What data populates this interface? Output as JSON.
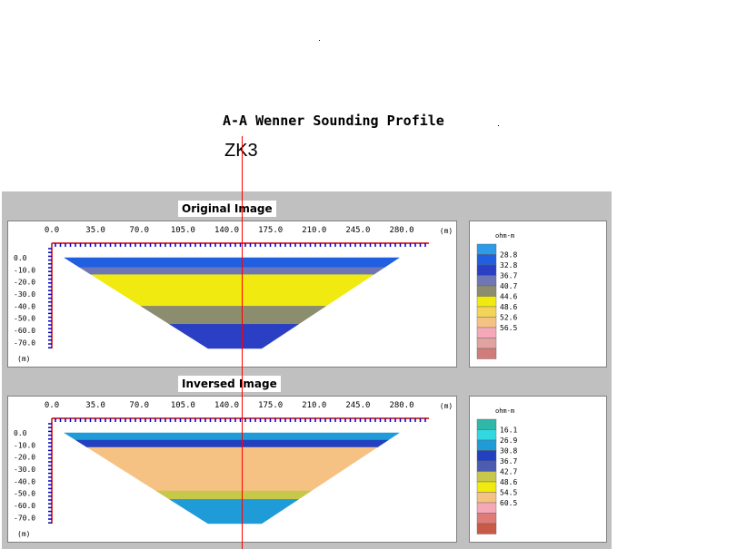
{
  "figure": {
    "title": "A-A Wenner Sounding Profile",
    "borehole": "ZK3"
  },
  "chart_data": [
    {
      "type": "heatmap",
      "title": "Original Image",
      "x_unit": "(m)",
      "y_unit": "(m)",
      "x_ticks": [
        "0.0",
        "35.0",
        "70.0",
        "105.0",
        "140.0",
        "175.0",
        "210.0",
        "245.0",
        "280.0"
      ],
      "y_ticks": [
        "0.0",
        "-10.0",
        "-20.0",
        "-30.0",
        "-40.0",
        "-50.0",
        "-60.0",
        "-70.0"
      ],
      "xlim": [
        0,
        280
      ],
      "ylim": [
        -75,
        0
      ],
      "colorbar_unit": "ohm-m",
      "colorbar_ticks": [
        "28.8",
        "32.8",
        "36.7",
        "40.7",
        "44.6",
        "48.6",
        "52.6",
        "56.5"
      ],
      "colorbar_colors": [
        "#2f9ae8",
        "#1f5fe0",
        "#2a3fc4",
        "#6e76b4",
        "#8c8c6e",
        "#f0ea10",
        "#f3d35a",
        "#f6c283",
        "#f5a9b8",
        "#e0a3a0",
        "#d27b7b"
      ],
      "layers": [
        {
          "depth_top": 0,
          "depth_bottom": -8,
          "value": 30.0
        },
        {
          "depth_top": -8,
          "depth_bottom": -14,
          "value": 36.7
        },
        {
          "depth_top": -14,
          "depth_bottom": -40,
          "value": 46.0
        },
        {
          "depth_top": -40,
          "depth_bottom": -55,
          "value": 42.0
        },
        {
          "depth_top": -55,
          "depth_bottom": -75,
          "value": 32.8
        }
      ],
      "borehole_x": 140
    },
    {
      "type": "heatmap",
      "title": "Inversed Image",
      "x_unit": "(m)",
      "y_unit": "(m)",
      "x_ticks": [
        "0.0",
        "35.0",
        "70.0",
        "105.0",
        "140.0",
        "175.0",
        "210.0",
        "245.0",
        "280.0"
      ],
      "y_ticks": [
        "0.0",
        "-10.0",
        "-20.0",
        "-30.0",
        "-40.0",
        "-50.0",
        "-60.0",
        "-70.0"
      ],
      "xlim": [
        0,
        280
      ],
      "ylim": [
        -75,
        0
      ],
      "colorbar_unit": "ohm-m",
      "colorbar_ticks": [
        "16.1",
        "26.9",
        "30.8",
        "36.7",
        "42.7",
        "48.6",
        "54.5",
        "60.5"
      ],
      "colorbar_colors": [
        "#2fb8a8",
        "#30d8e0",
        "#1f9cd8",
        "#2240c0",
        "#4c5cb0",
        "#c7c84a",
        "#f0ea10",
        "#f6c283",
        "#f5a9b8",
        "#e07a78",
        "#c95a48"
      ],
      "layers": [
        {
          "depth_top": 0,
          "depth_bottom": -6,
          "value": 26.9
        },
        {
          "depth_top": -6,
          "depth_bottom": -12,
          "value": 30.8
        },
        {
          "depth_top": -12,
          "depth_bottom": -48,
          "value": 58.0
        },
        {
          "depth_top": -48,
          "depth_bottom": -55,
          "value": 42.7
        },
        {
          "depth_top": -55,
          "depth_bottom": -75,
          "value": 26.9
        }
      ],
      "borehole_x": 140
    }
  ]
}
